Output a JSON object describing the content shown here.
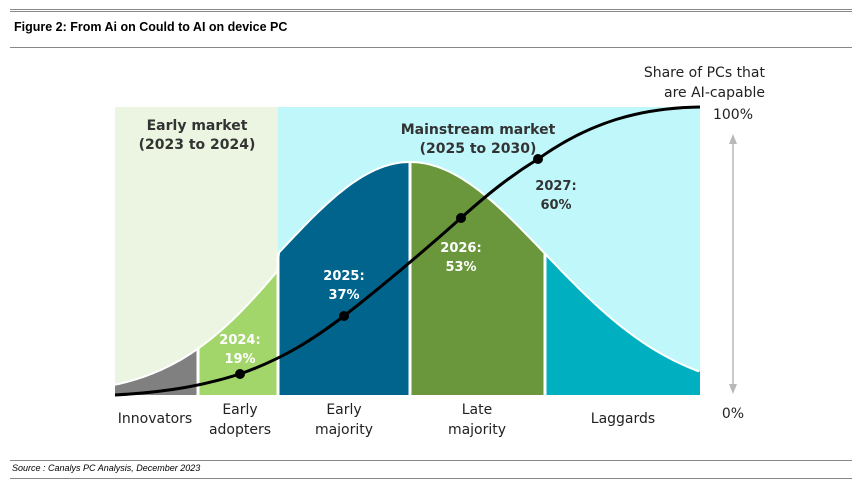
{
  "figure": {
    "title": "Figure 2: From Ai on Could to AI on device PC",
    "source": "Source : Canalys PC Analysis, December  2023"
  },
  "diagram": {
    "axis_title_line1": "Share of PCs that",
    "axis_title_line2": "are AI-capable",
    "axis_top": "100%",
    "axis_bottom": "0%",
    "early_market": {
      "line1": "Early market",
      "line2": "(2023 to 2024)",
      "color": "#ebf5e1"
    },
    "mainstream_market": {
      "line1": "Mainstream market",
      "line2": "(2025 to 2030)",
      "color": "#c0f7fa"
    },
    "segments": [
      {
        "label1": "Innovators",
        "label2": "",
        "color": "#808080"
      },
      {
        "label1": "Early",
        "label2": "adopters",
        "color": "#a3d66a"
      },
      {
        "label1": "Early",
        "label2": "majority",
        "color": "#00648c"
      },
      {
        "label1": "Late",
        "label2": "majority",
        "color": "#6b973c"
      },
      {
        "label1": "Laggards",
        "label2": "",
        "color": "#00b0c0"
      }
    ],
    "milestones": [
      {
        "year": "2024:",
        "share": "19%"
      },
      {
        "year": "2025:",
        "share": "37%"
      },
      {
        "year": "2026:",
        "share": "53%"
      },
      {
        "year": "2027:",
        "share": "60%"
      }
    ]
  }
}
